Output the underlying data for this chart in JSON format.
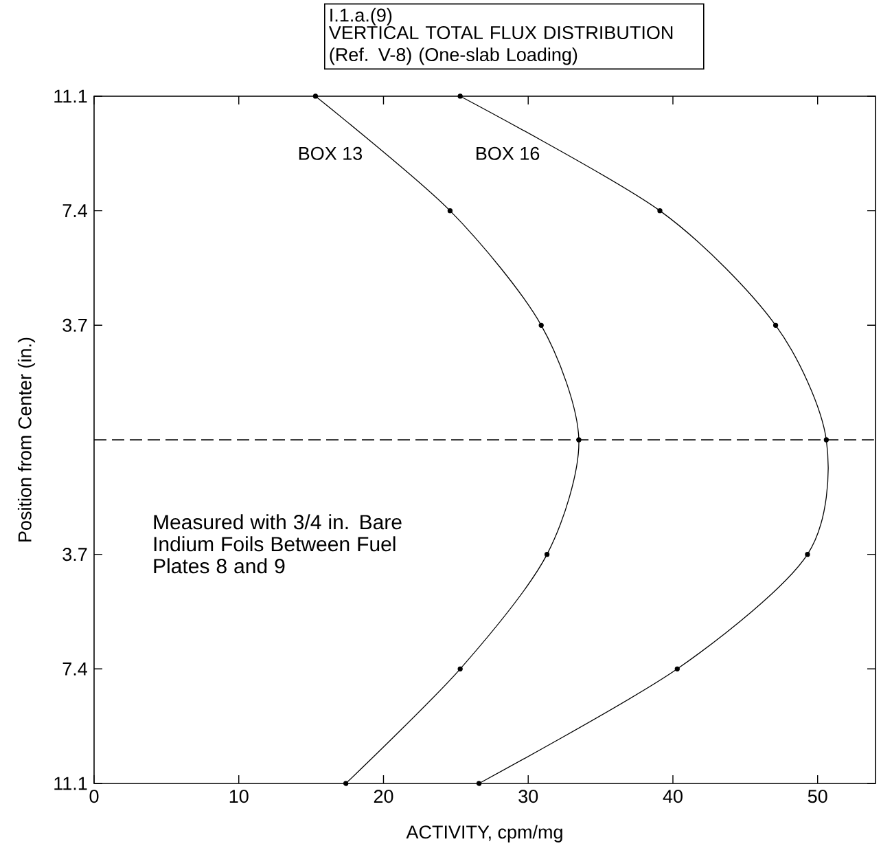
{
  "chart_data": {
    "type": "line",
    "title": "I.1.a.(9)",
    "subtitle": "VERTICAL TOTAL FLUX DISTRIBUTION (Ref. V-8) (One-slab Loading)",
    "xlabel": "ACTIVITY, cpm/mg",
    "ylabel": "Position from Center (in.)",
    "series": [
      {
        "name": "BOX 13",
        "color": "#000000",
        "x": [
          15.3,
          24.6,
          30.9,
          33.5,
          31.3,
          25.3,
          17.4
        ],
        "values": [
          11.1,
          7.4,
          3.7,
          0,
          -3.7,
          -7.4,
          -11.1
        ]
      },
      {
        "name": "BOX 16",
        "color": "#000000",
        "x": [
          25.3,
          39.1,
          47.1,
          50.6,
          49.3,
          40.3,
          26.6
        ],
        "values": [
          11.1,
          7.4,
          3.7,
          0,
          -3.7,
          -7.4,
          -11.1
        ]
      }
    ],
    "xlim": [
      0,
      54
    ],
    "xticks": [
      0,
      10,
      20,
      30,
      40,
      50
    ],
    "ylim": [
      -11.1,
      11.1
    ],
    "yticks": [
      {
        "value": -11.1,
        "label": "11.1"
      },
      {
        "value": -7.4,
        "label": "7.4"
      },
      {
        "value": -3.7,
        "label": "3.7"
      },
      {
        "value": 3.7,
        "label": "3.7"
      },
      {
        "value": 7.4,
        "label": "7.4"
      },
      {
        "value": 11.1,
        "label": "11.1"
      }
    ],
    "ref_lines": [
      {
        "axis": "y",
        "value": 0,
        "line_style": "dashed",
        "color": "#000000"
      }
    ],
    "annotations": [
      "Measured with 3/4 in. Bare Indium Foils Between Fuel Plates 8 and 9"
    ],
    "marker": "circle",
    "line_style": "solid"
  }
}
